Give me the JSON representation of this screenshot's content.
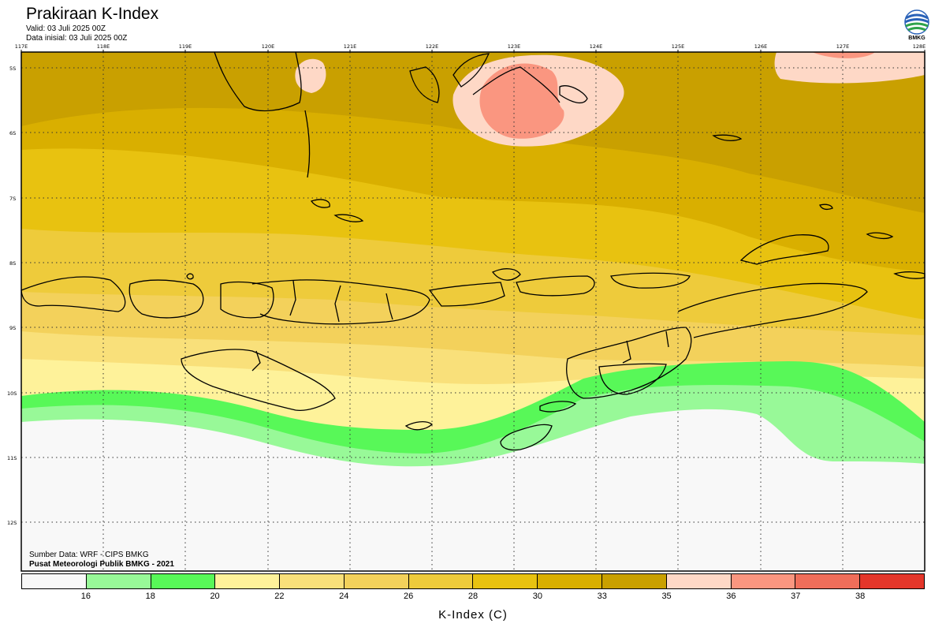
{
  "header": {
    "title": "Prakiraan K-Index",
    "valid": "Valid: 03 Juli 2025 00Z",
    "init": "Data inisial: 03 Juli 2025 00Z",
    "logo_text": "BMKG"
  },
  "map": {
    "lon_labels": [
      "117E",
      "118E",
      "119E",
      "120E",
      "121E",
      "122E",
      "123E",
      "124E",
      "125E",
      "126E",
      "127E",
      "128E"
    ],
    "lat_labels": [
      "5S",
      "6S",
      "7S",
      "8S",
      "9S",
      "10S",
      "11S",
      "12S"
    ]
  },
  "footer": {
    "source": "Sumber Data: WRF - CIPS BMKG",
    "credit": "Pusat Meteorologi Publik BMKG - 2021"
  },
  "legend": {
    "title": "K-Index (C)",
    "colors": [
      "#f8f8f8",
      "#98f998",
      "#58f858",
      "#fef29a",
      "#f9e07a",
      "#f3d15b",
      "#eecb3b",
      "#e8c210",
      "#d9af00",
      "#c9a000",
      "#fed8c6",
      "#fa9680",
      "#f06e5a",
      "#e4362a"
    ],
    "ticks": [
      "16",
      "18",
      "20",
      "22",
      "24",
      "26",
      "28",
      "30",
      "33",
      "35",
      "36",
      "37",
      "38"
    ]
  }
}
